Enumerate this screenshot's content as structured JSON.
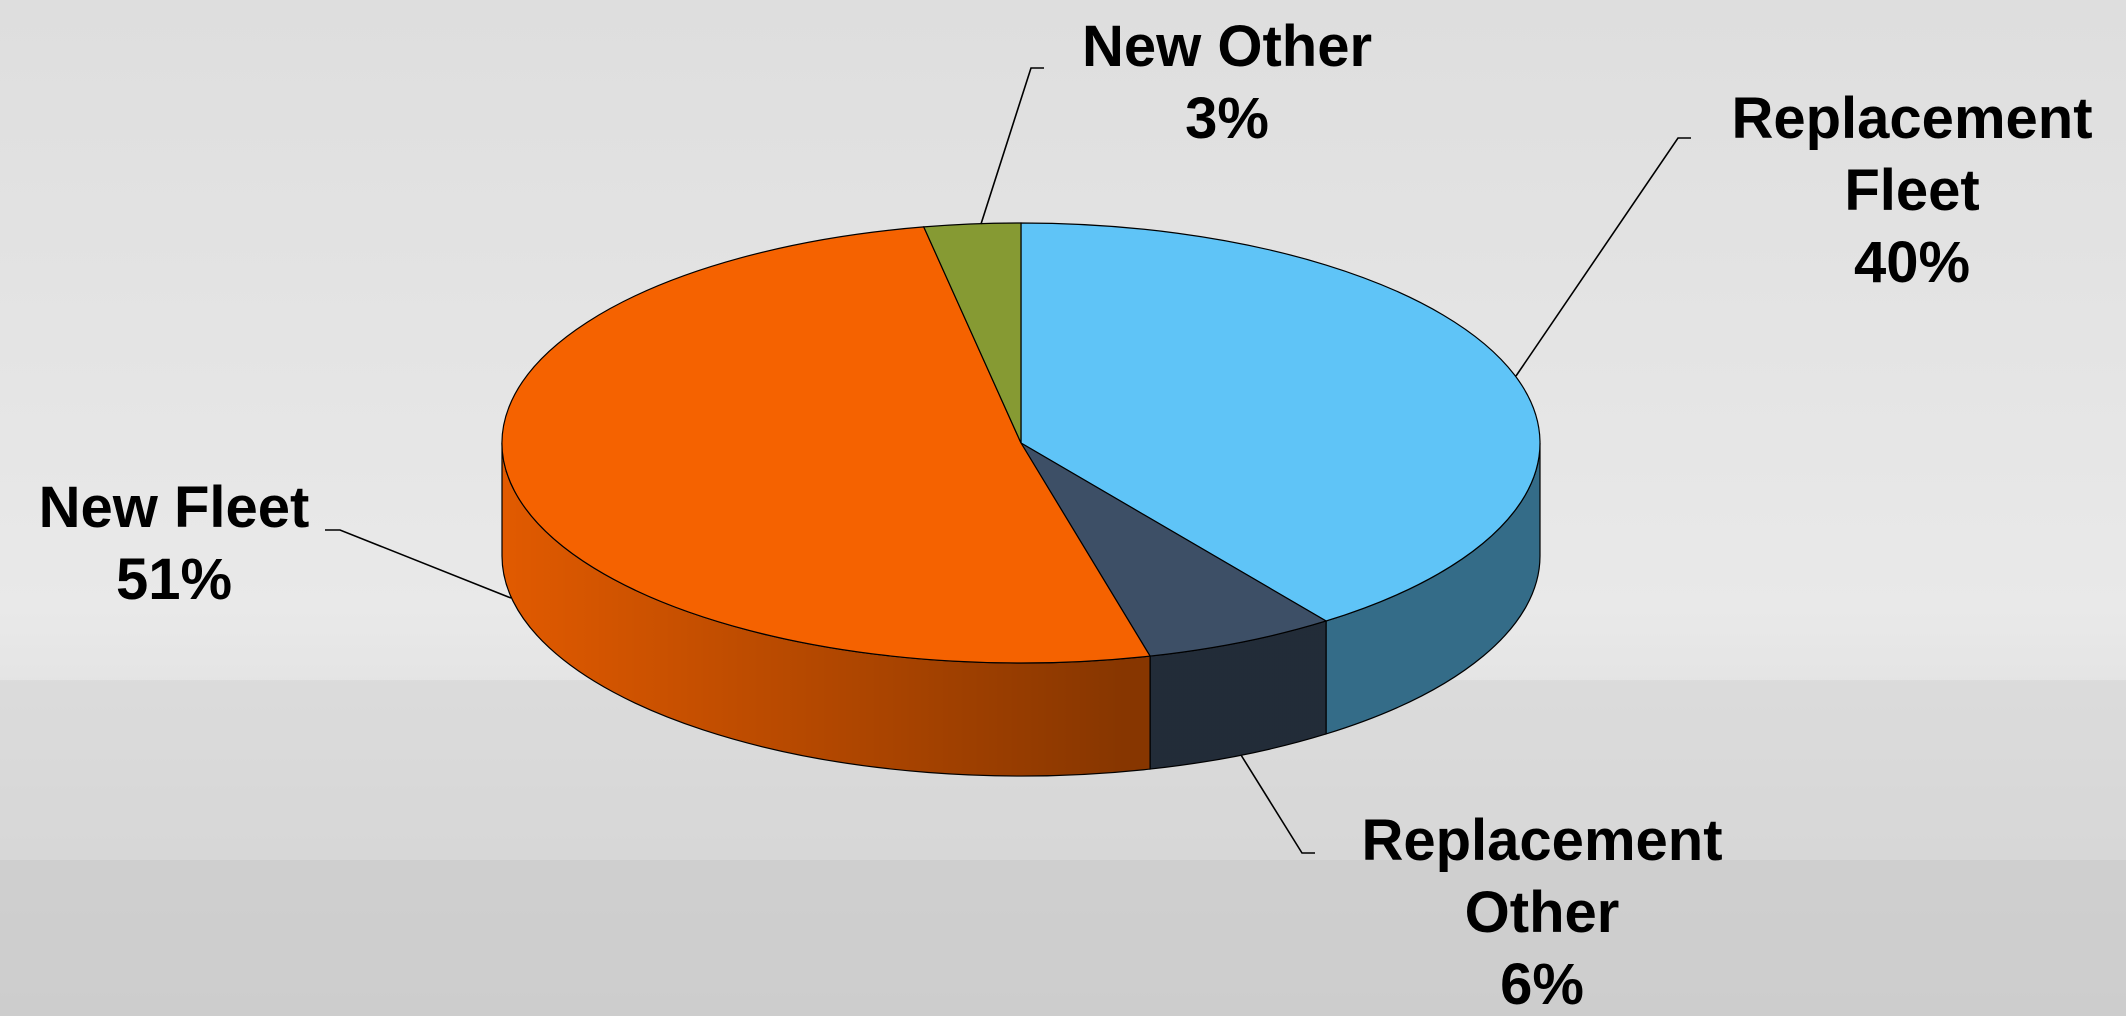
{
  "chart_data": {
    "type": "pie3d",
    "categories": [
      "Replacement Fleet",
      "Replacement Other",
      "New Fleet",
      "New Other"
    ],
    "values": [
      40,
      6,
      51,
      3
    ],
    "value_labels": [
      "40%",
      "6%",
      "51%",
      "3%"
    ],
    "colors": [
      "#5fc4f7",
      "#3d4f66",
      "#f56200",
      "#869a33"
    ]
  }
}
